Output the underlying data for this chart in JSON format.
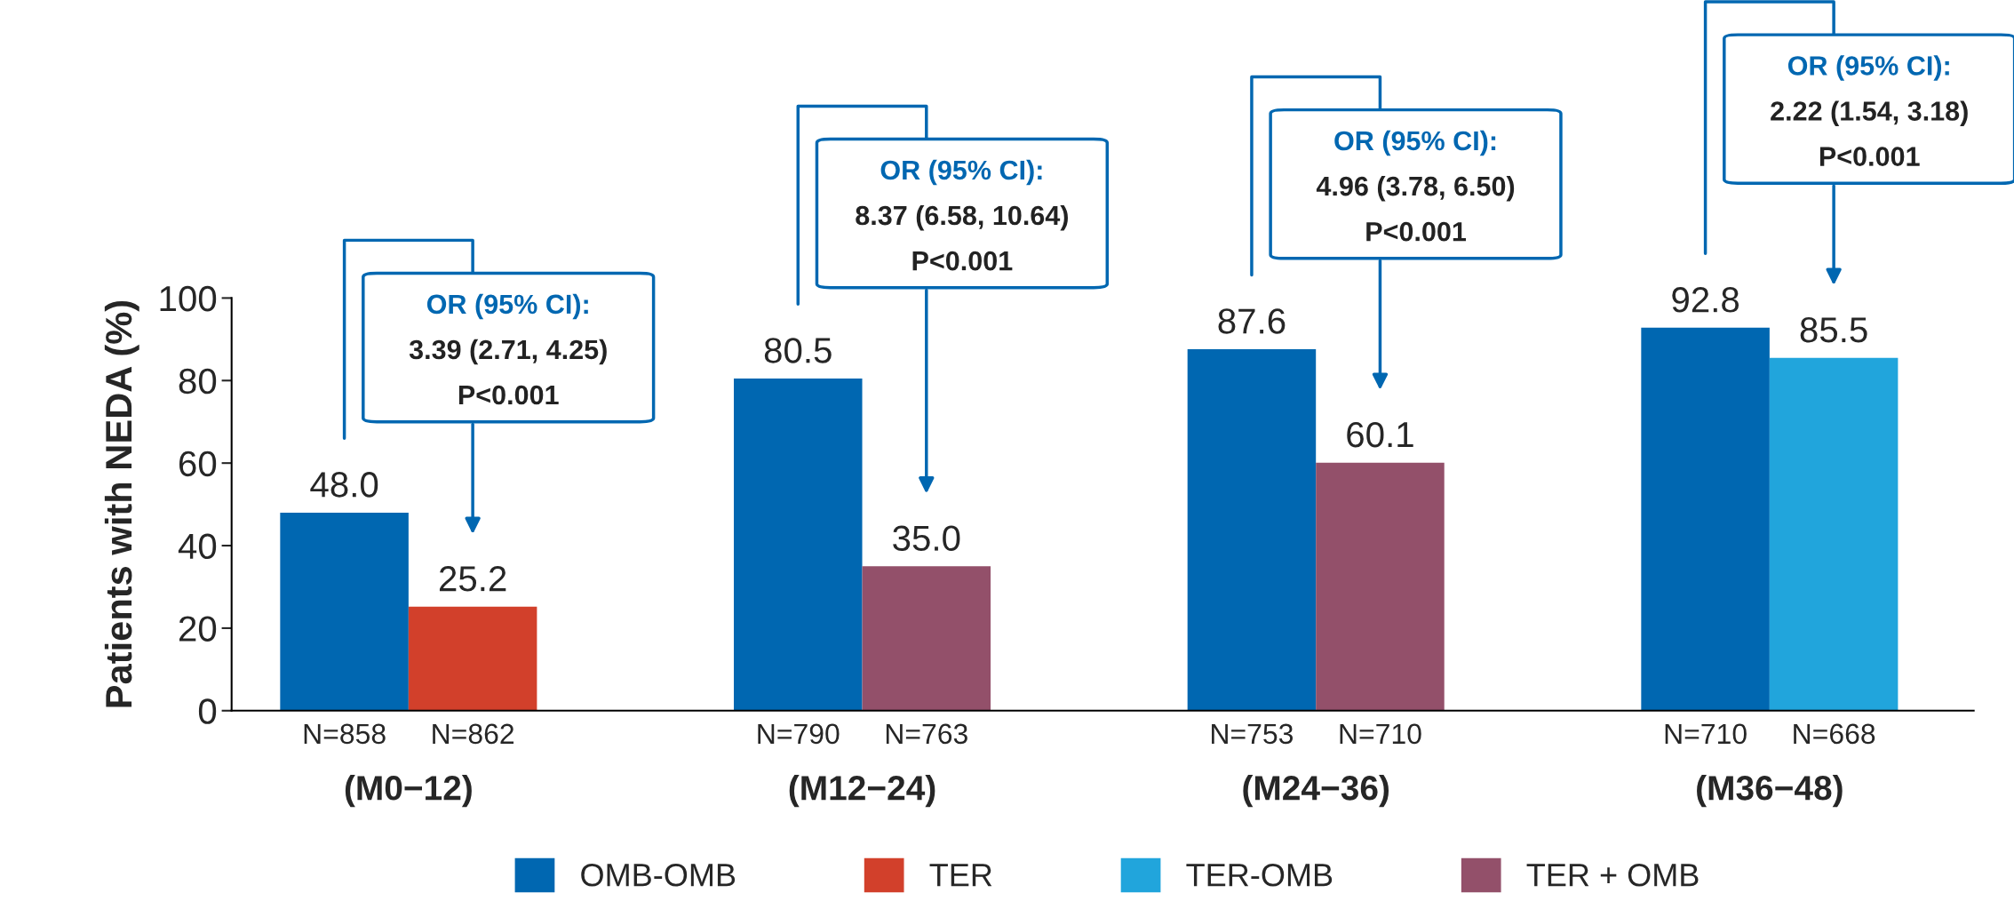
{
  "chart_data": {
    "type": "bar",
    "ylabel": "Patients with NEDA (%)",
    "categories": [
      "(M0−12)",
      "(M12−24)",
      "(M24−36)",
      "(M36−48)"
    ],
    "series": [
      {
        "name": "OMB-OMB",
        "color": "#0067b1",
        "values": [
          48.0,
          80.5,
          87.6,
          92.8
        ],
        "value_labels": [
          "48.0",
          "80.5",
          "87.6",
          "92.8"
        ]
      },
      {
        "name": "TER",
        "color": "#d2402b",
        "values": [
          25.2,
          null,
          null,
          null
        ],
        "value_labels": [
          "25.2",
          null,
          null,
          null
        ]
      },
      {
        "name": "TER-OMB",
        "color": "#21a5dc",
        "values": [
          null,
          null,
          null,
          85.5
        ],
        "value_labels": [
          null,
          null,
          null,
          "85.5"
        ]
      },
      {
        "name": "TER + OMB",
        "color": "#93506a",
        "values": [
          null,
          35.0,
          60.1,
          null
        ],
        "value_labels": [
          null,
          "35.0",
          "60.1",
          null
        ]
      }
    ],
    "ylim": [
      0,
      100
    ],
    "yticks": [
      0,
      20,
      40,
      60,
      80,
      100
    ],
    "grid": false,
    "legend": "bottom",
    "annotations": [
      "N=858",
      "N=862",
      "N=790",
      "N=763",
      "N=753",
      "N=710",
      "N=710",
      "N=668",
      "OR (95% CI):\n3.39 (2.71, 4.25)\nP<0.001",
      "OR (95% CI):\n8.37 (6.58, 10.64)\nP<0.001",
      "OR (95% CI):\n4.96 (3.78, 6.50)\nP<0.001",
      "OR (95% CI):\n2.22 (1.54, 3.18)\nP<0.001"
    ]
  }
}
